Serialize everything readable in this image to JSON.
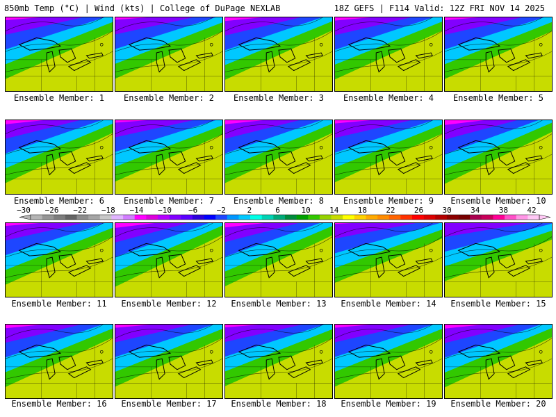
{
  "header": {
    "left": "850mb Temp (°C) | Wind (kts) | College of DuPage NEXLAB",
    "right": "18Z GEFS | F114 Valid: 12Z FRI NOV 14 2025"
  },
  "member_label_prefix": "Ensemble Member:",
  "members": [
    1,
    2,
    3,
    4,
    5,
    6,
    7,
    8,
    9,
    10,
    11,
    12,
    13,
    14,
    15,
    16,
    17,
    18,
    19,
    20
  ],
  "colorbar": {
    "tick_labels": [
      "−30",
      "−26",
      "−22",
      "−18",
      "−14",
      "−10",
      "−6",
      "−2",
      "2",
      "6",
      "10",
      "14",
      "18",
      "22",
      "26",
      "30",
      "34",
      "38",
      "42"
    ],
    "colors": [
      "#b4b4b4",
      "#969696",
      "#7d7d7d",
      "#646464",
      "#8c8c8c",
      "#a5a5a5",
      "#c8c8c8",
      "#e1b4ff",
      "#d27dff",
      "#ff00ff",
      "#dc00dc",
      "#b400ff",
      "#8200ff",
      "#5a00ff",
      "#2d00dc",
      "#0000ff",
      "#1e46ff",
      "#0096ff",
      "#00c8ff",
      "#00ffe6",
      "#00d2b4",
      "#00aa78",
      "#008c3c",
      "#00a000",
      "#32c800",
      "#96d200",
      "#c8dc00",
      "#ffff00",
      "#ffd200",
      "#ffaa00",
      "#ff8c00",
      "#ff6400",
      "#ff3200",
      "#ff0000",
      "#dc0000",
      "#b40000",
      "#8c0000",
      "#780000",
      "#aa0050",
      "#c8005a",
      "#ff0096",
      "#ff50c8",
      "#ff96e6",
      "#ffc8f5"
    ]
  },
  "panel_colors": {
    "warm_sw": "#c8dc00",
    "mid": "#32c800",
    "cool": "#00c8ff",
    "cold": "#1e46ff",
    "colder": "#8200ff",
    "coldest": "#ff00ff"
  }
}
